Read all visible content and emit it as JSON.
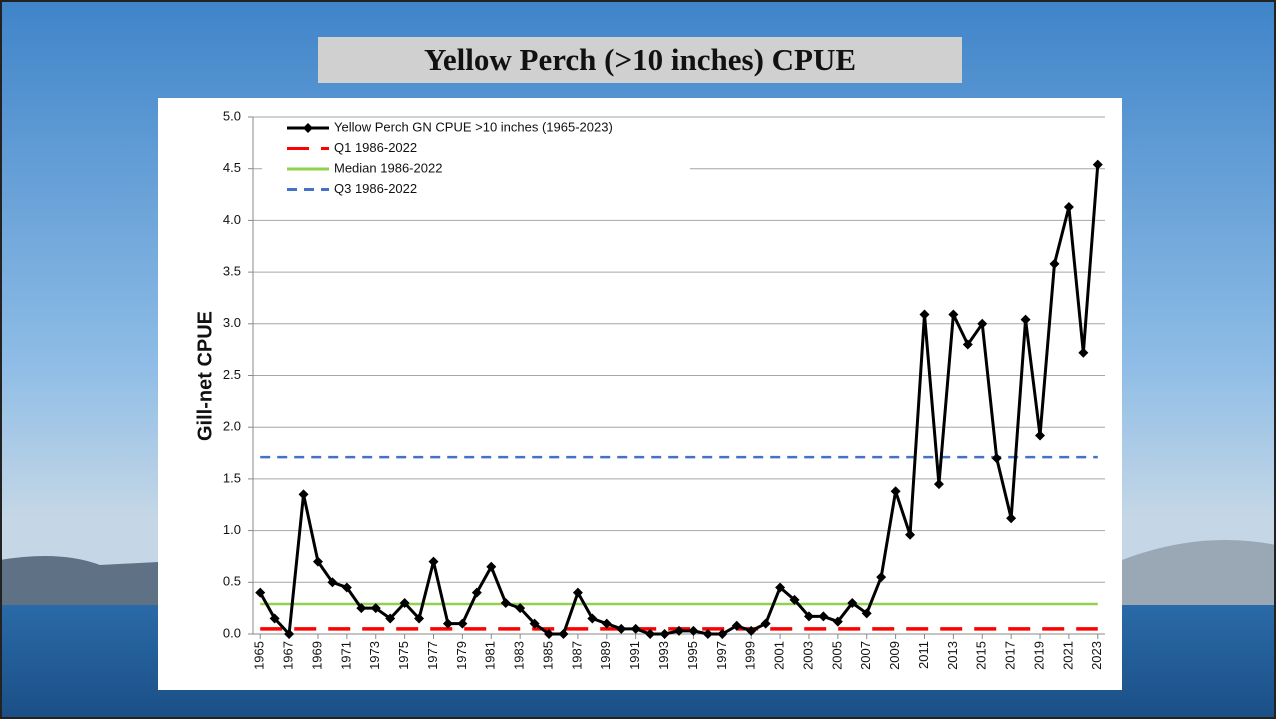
{
  "chart_data": {
    "type": "line",
    "title": "Yellow Perch (>10 inches) CPUE",
    "y_label": "Gill-net CPUE",
    "x": [
      1965,
      1966,
      1967,
      1968,
      1969,
      1970,
      1971,
      1972,
      1973,
      1974,
      1975,
      1976,
      1977,
      1978,
      1979,
      1980,
      1981,
      1982,
      1983,
      1984,
      1985,
      1986,
      1987,
      1988,
      1989,
      1990,
      1991,
      1992,
      1993,
      1994,
      1995,
      1996,
      1997,
      1998,
      1999,
      2000,
      2001,
      2002,
      2003,
      2004,
      2005,
      2006,
      2007,
      2008,
      2009,
      2010,
      2011,
      2012,
      2013,
      2014,
      2015,
      2016,
      2017,
      2018,
      2019,
      2020,
      2021,
      2022,
      2023
    ],
    "xlim": [
      1964.5,
      2023.5
    ],
    "xticks": [
      1965,
      1967,
      1969,
      1971,
      1973,
      1975,
      1977,
      1979,
      1981,
      1983,
      1985,
      1987,
      1989,
      1991,
      1993,
      1995,
      1997,
      1999,
      2001,
      2003,
      2005,
      2007,
      2009,
      2011,
      2013,
      2015,
      2017,
      2019,
      2021,
      2023
    ],
    "series": [
      {
        "name": "Yellow Perch GN CPUE >10 inches (1965-2023)",
        "color": "#000000",
        "values": [
          0.4,
          0.15,
          0.0,
          1.35,
          0.7,
          0.5,
          0.45,
          0.25,
          0.25,
          0.15,
          0.3,
          0.15,
          0.7,
          0.1,
          0.1,
          0.4,
          0.65,
          0.3,
          0.25,
          0.1,
          0.0,
          0.0,
          0.4,
          0.15,
          0.1,
          0.05,
          0.05,
          0.0,
          0.0,
          0.03,
          0.03,
          0.0,
          0.0,
          0.08,
          0.03,
          0.1,
          0.45,
          0.33,
          0.17,
          0.17,
          0.12,
          0.3,
          0.2,
          0.55,
          1.38,
          0.96,
          3.09,
          1.45,
          3.09,
          2.8,
          3.0,
          1.7,
          1.12,
          3.04,
          1.92,
          3.58,
          4.13,
          2.72,
          4.54
        ]
      }
    ],
    "reference_lines": [
      {
        "name": "Q1 1986-2022",
        "color": "#ff0000",
        "value": 0.05,
        "line_style": "long-dash"
      },
      {
        "name": "Median 1986-2022",
        "color": "#92d050",
        "value": 0.29,
        "line_style": "solid"
      },
      {
        "name": "Q3 1986-2022",
        "color": "#4472c4",
        "value": 1.71,
        "line_style": "dash"
      }
    ],
    "ylim": [
      0,
      5
    ],
    "yticks": [
      {
        "value": 0,
        "label": "0.0"
      },
      0.5,
      {
        "value": 1,
        "label": "1.0"
      },
      1.5,
      {
        "value": 2,
        "label": "2.0"
      },
      2.5,
      {
        "value": 3,
        "label": "3.0"
      },
      3.5,
      {
        "value": 4,
        "label": "4.0"
      },
      4.5,
      {
        "value": 5,
        "label": "5.0"
      }
    ],
    "grid": true,
    "legend": "top-left"
  }
}
